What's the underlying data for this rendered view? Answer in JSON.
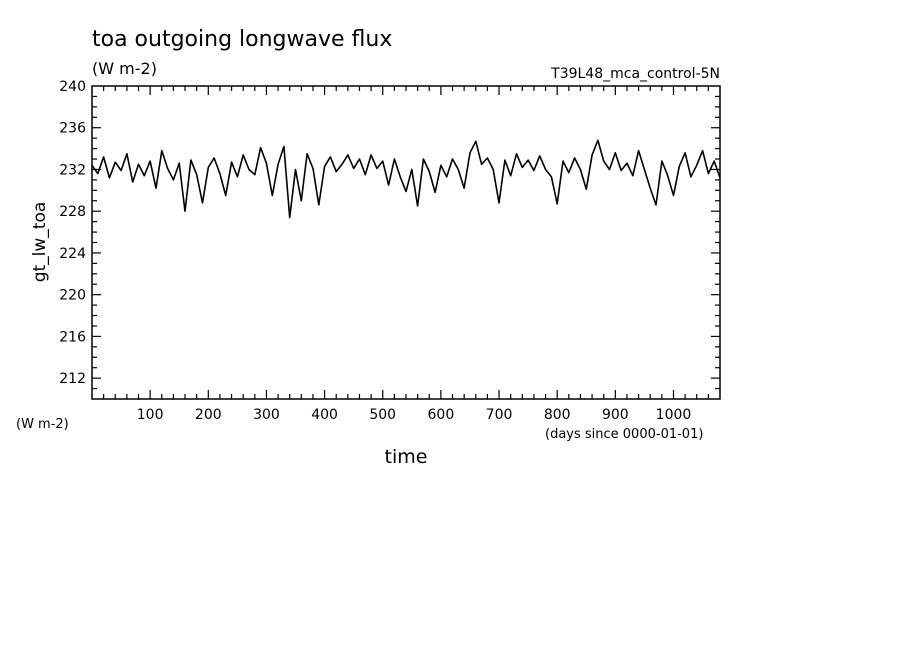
{
  "chart_data": {
    "type": "line",
    "title": "toa outgoing longwave flux",
    "subtitle": "(W m-2)",
    "experiment_label": "T39L48_mca_control-5N",
    "xlabel": "time",
    "x_units": "(days since 0000-01-01)",
    "ylabel": "gt_lw_toa",
    "y_units": "(W m-2)",
    "xlim": [
      0,
      1080
    ],
    "ylim": [
      210,
      240
    ],
    "x_ticks": [
      100,
      200,
      300,
      400,
      500,
      600,
      700,
      800,
      900,
      1000
    ],
    "y_ticks": [
      212,
      216,
      220,
      224,
      228,
      232,
      236,
      240
    ],
    "grid": false,
    "series": [
      {
        "x": [
          0,
          10,
          20,
          30,
          40,
          50,
          60,
          70,
          80,
          90,
          100,
          110,
          120,
          130,
          140,
          150,
          160,
          170,
          180,
          190,
          200,
          210,
          220,
          230,
          240,
          250,
          260,
          270,
          280,
          290,
          300,
          310,
          320,
          330,
          340,
          350,
          360,
          370,
          380,
          390,
          400,
          410,
          420,
          430,
          440,
          450,
          460,
          470,
          480,
          490,
          500,
          510,
          520,
          530,
          540,
          550,
          560,
          570,
          580,
          590,
          600,
          610,
          620,
          630,
          640,
          650,
          660,
          670,
          680,
          690,
          700,
          710,
          720,
          730,
          740,
          750,
          760,
          770,
          780,
          790,
          800,
          810,
          820,
          830,
          840,
          850,
          860,
          870,
          880,
          890,
          900,
          910,
          920,
          930,
          940,
          950,
          960,
          970,
          980,
          990,
          1000,
          1010,
          1020,
          1030,
          1040,
          1050,
          1060,
          1070,
          1080
        ],
        "values": [
          232.4,
          231.6,
          233.2,
          231.2,
          232.7,
          231.9,
          233.5,
          230.8,
          232.5,
          231.4,
          232.8,
          230.2,
          233.8,
          232.1,
          231.0,
          232.6,
          228.0,
          232.9,
          231.5,
          228.8,
          232.2,
          233.1,
          231.6,
          229.5,
          232.7,
          231.3,
          233.4,
          232.0,
          231.5,
          234.1,
          232.6,
          229.5,
          232.5,
          234.2,
          227.4,
          232.0,
          229.0,
          233.5,
          232.1,
          228.6,
          232.3,
          233.2,
          231.8,
          232.5,
          233.4,
          232.1,
          233.0,
          231.5,
          233.4,
          232.1,
          232.8,
          230.5,
          233.0,
          231.3,
          229.9,
          232.0,
          228.5,
          233.0,
          231.8,
          229.8,
          232.4,
          231.3,
          233.0,
          232.0,
          230.2,
          233.6,
          234.7,
          232.5,
          233.1,
          232.0,
          228.8,
          232.9,
          231.4,
          233.5,
          232.2,
          232.9,
          231.9,
          233.3,
          232.0,
          231.3,
          228.7,
          232.8,
          231.7,
          233.1,
          232.0,
          230.1,
          233.4,
          234.8,
          232.8,
          232.0,
          233.6,
          231.9,
          232.6,
          231.4,
          233.8,
          232.0,
          230.2,
          228.6,
          232.8,
          231.4,
          229.5,
          232.3,
          233.6,
          231.3,
          232.4,
          233.8,
          231.6,
          232.8,
          231.2
        ]
      }
    ]
  }
}
